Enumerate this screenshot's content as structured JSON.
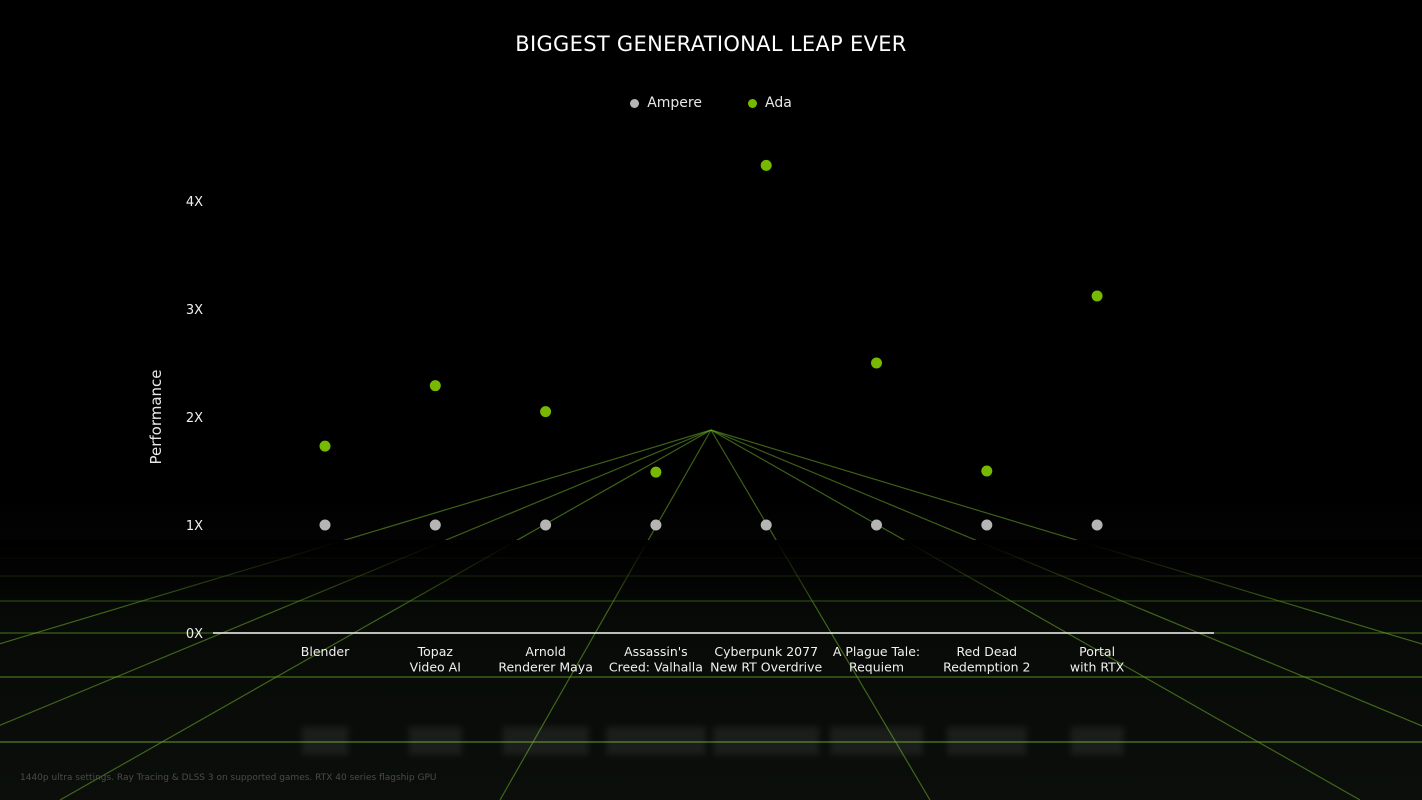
{
  "chart_data": {
    "type": "scatter",
    "title": "BIGGEST GENERATIONAL LEAP EVER",
    "ylabel": "Performance",
    "xlabel": "",
    "ylim": [
      0,
      4.3
    ],
    "yticks": [
      "0X",
      "1X",
      "2X",
      "3X",
      "4X"
    ],
    "categories": [
      [
        "Blender"
      ],
      [
        "Topaz",
        "Video AI"
      ],
      [
        "Arnold",
        "Renderer Maya"
      ],
      [
        "Assassin's",
        "Creed: Valhalla"
      ],
      [
        "Cyberpunk 2077",
        "New RT Overdrive"
      ],
      [
        "A Plague Tale:",
        "Requiem"
      ],
      [
        "Red Dead",
        "Redemption 2"
      ],
      [
        "Portal",
        "with RTX"
      ]
    ],
    "series": [
      {
        "name": "Ampere",
        "color": "#b5b5b5",
        "values": [
          1,
          1,
          1,
          1,
          1,
          1,
          1,
          1
        ]
      },
      {
        "name": "Ada",
        "color": "#76b900",
        "values": [
          1.73,
          2.29,
          2.05,
          1.49,
          4.33,
          2.5,
          1.5,
          3.12
        ]
      }
    ],
    "legend_position": "top-center",
    "grid": false
  },
  "footnote": "1440p ultra settings. Ray Tracing & DLSS 3 on supported games. RTX 40 series flagship GPU"
}
